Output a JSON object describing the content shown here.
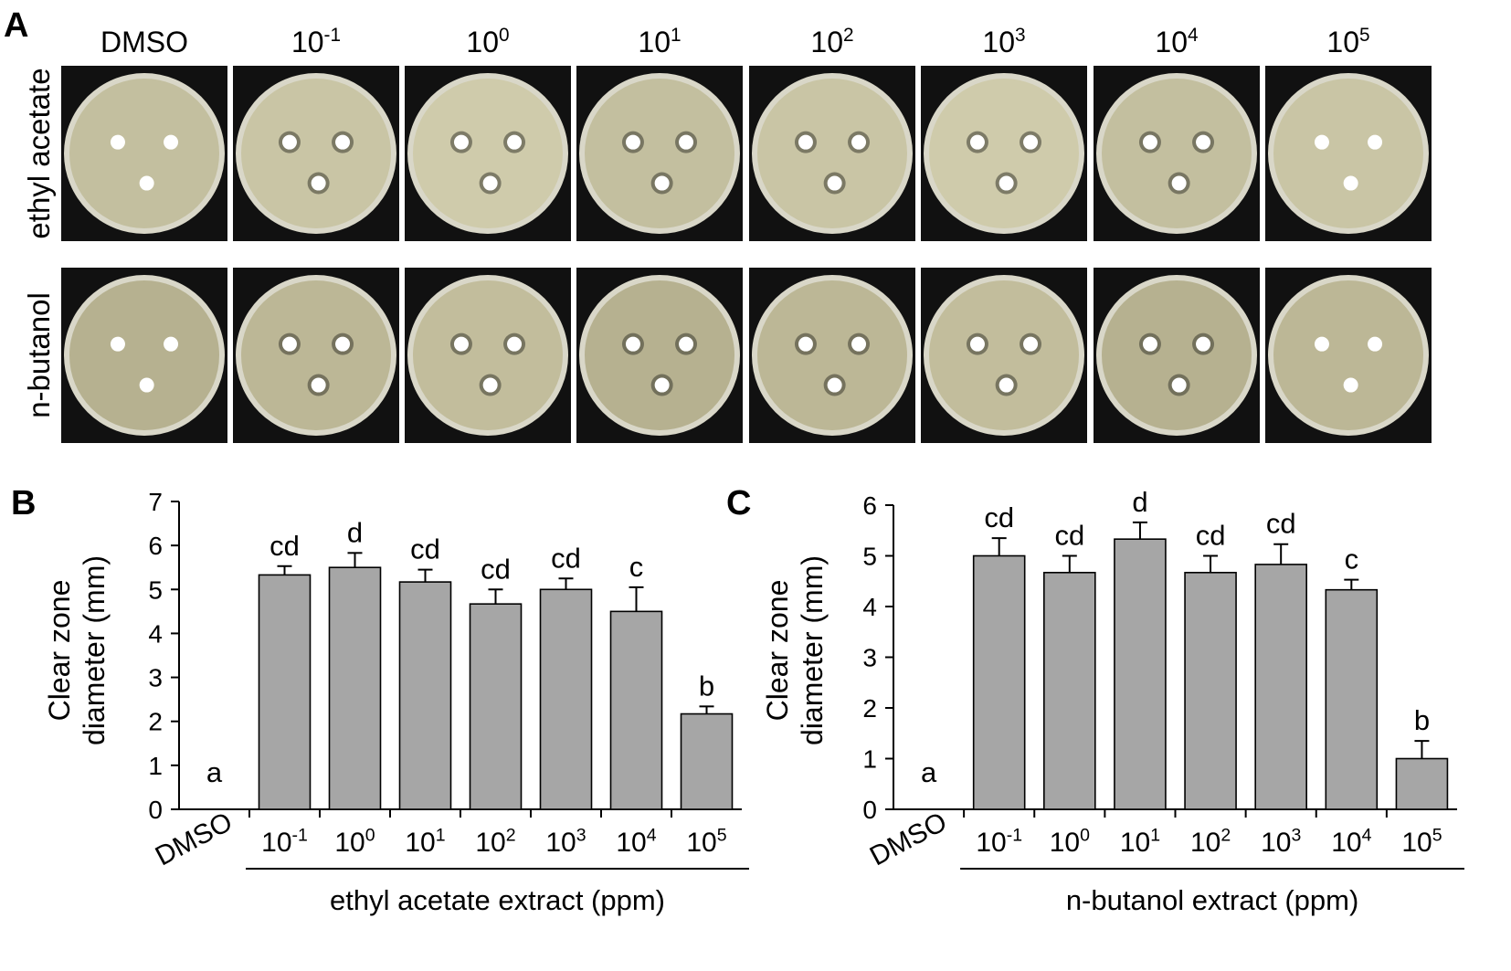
{
  "panel_a": {
    "label": "A",
    "columns": [
      "DMSO",
      "10",
      "10",
      "10",
      "10",
      "10",
      "10",
      "10"
    ],
    "column_exponents": [
      "",
      "-1",
      "0",
      "1",
      "2",
      "3",
      "4",
      "5"
    ],
    "rows": [
      "ethyl acetate",
      "n-butanol"
    ]
  },
  "colors": {
    "bar_fill": "#a6a6a6",
    "plate_bg": "#111111",
    "agar": "#c9c6a6",
    "disc": "#ffffff"
  },
  "chart_data": [
    {
      "type": "bar",
      "panel_label": "B",
      "categories": [
        "DMSO",
        "10",
        "10",
        "10",
        "10",
        "10",
        "10",
        "10"
      ],
      "category_exponents": [
        "",
        "-1",
        "0",
        "1",
        "2",
        "3",
        "4",
        "5"
      ],
      "values": [
        0,
        5.33,
        5.5,
        5.17,
        4.67,
        5.0,
        4.5,
        2.17
      ],
      "errors": [
        0,
        0.2,
        0.33,
        0.28,
        0.33,
        0.25,
        0.55,
        0.17
      ],
      "letters": [
        "a",
        "cd",
        "d",
        "cd",
        "cd",
        "cd",
        "c",
        "b"
      ],
      "ylabel_lines": [
        "Clear zone",
        "diameter (mm)"
      ],
      "group_label": "ethyl acetate extract (ppm)",
      "ylim": [
        0,
        7
      ],
      "yticks": [
        0,
        1,
        2,
        3,
        4,
        5,
        6,
        7
      ]
    },
    {
      "type": "bar",
      "panel_label": "C",
      "categories": [
        "DMSO",
        "10",
        "10",
        "10",
        "10",
        "10",
        "10",
        "10"
      ],
      "category_exponents": [
        "",
        "-1",
        "0",
        "1",
        "2",
        "3",
        "4",
        "5"
      ],
      "values": [
        0,
        5.0,
        4.67,
        5.33,
        4.67,
        4.83,
        4.33,
        1.0
      ],
      "errors": [
        0,
        0.35,
        0.33,
        0.33,
        0.33,
        0.4,
        0.2,
        0.35
      ],
      "letters": [
        "a",
        "cd",
        "cd",
        "d",
        "cd",
        "cd",
        "c",
        "b"
      ],
      "ylabel_lines": [
        "Clear zone",
        "diameter (mm)"
      ],
      "group_label": "n-butanol extract (ppm)",
      "ylim": [
        0,
        6
      ],
      "yticks": [
        0,
        1,
        2,
        3,
        4,
        5,
        6
      ]
    }
  ]
}
